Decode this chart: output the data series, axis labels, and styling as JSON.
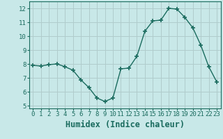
{
  "x": [
    0,
    1,
    2,
    3,
    4,
    5,
    6,
    7,
    8,
    9,
    10,
    11,
    12,
    13,
    14,
    15,
    16,
    17,
    18,
    19,
    20,
    21,
    22,
    23
  ],
  "y": [
    7.9,
    7.85,
    7.95,
    8.0,
    7.8,
    7.55,
    6.85,
    6.3,
    5.55,
    5.3,
    5.55,
    7.65,
    7.7,
    8.55,
    10.35,
    11.1,
    11.15,
    12.0,
    11.95,
    11.35,
    10.6,
    9.35,
    7.8,
    6.7
  ],
  "xlim": [
    -0.5,
    23.5
  ],
  "ylim": [
    4.8,
    12.5
  ],
  "yticks": [
    5,
    6,
    7,
    8,
    9,
    10,
    11,
    12
  ],
  "xticks": [
    0,
    1,
    2,
    3,
    4,
    5,
    6,
    7,
    8,
    9,
    10,
    11,
    12,
    13,
    14,
    15,
    16,
    17,
    18,
    19,
    20,
    21,
    22,
    23
  ],
  "xlabel": "Humidex (Indice chaleur)",
  "line_color": "#1a6b5e",
  "marker": "+",
  "marker_size": 5,
  "bg_color": "#c8e8e8",
  "grid_color": "#b0cccc",
  "tick_label_fontsize": 6.5,
  "xlabel_fontsize": 8.5
}
